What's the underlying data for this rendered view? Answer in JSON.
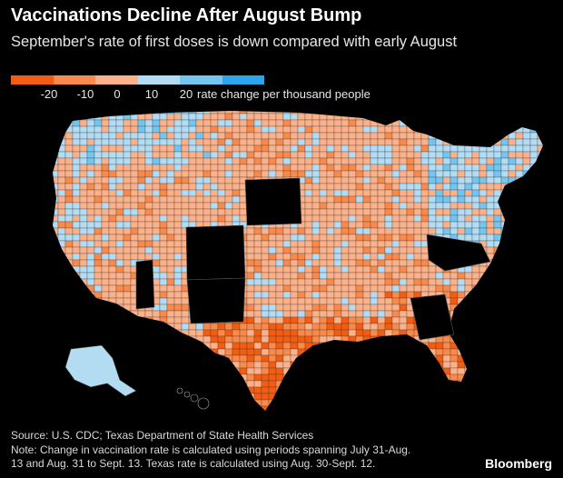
{
  "header": {
    "title": "Vaccinations Decline After August Bump",
    "subtitle": "September's rate of first doses is down compared with early August"
  },
  "legend": {
    "colors": [
      "#f25c13",
      "#f98a4c",
      "#fbb28b",
      "#b3dbf2",
      "#74c6f0",
      "#2aa7ec"
    ],
    "ticks": [
      "-20",
      "-10",
      "0",
      "10",
      "20"
    ],
    "tick_description": "rate change per thousand people",
    "no_data_color": "#000000"
  },
  "map": {
    "region": "United States counties",
    "palette": {
      "strong_decline": "#f25c13",
      "decline": "#f98a4c",
      "slight_decline": "#fbb28b",
      "slight_increase": "#b3dbf2",
      "increase": "#74c6f0",
      "strong_increase": "#2aa7ec",
      "no_data": "#000000",
      "border": "#333333"
    }
  },
  "footer": {
    "source": "Source: U.S. CDC; Texas Department of State Health Services",
    "note_line1": "Note: Change in vaccination rate is calculated using periods spanning July 31-Aug.",
    "note_line2": "13 and Aug. 31 to Sept. 13. Texas rate is calculated using Aug. 30-Sept. 12."
  },
  "brand": "Bloomberg"
}
